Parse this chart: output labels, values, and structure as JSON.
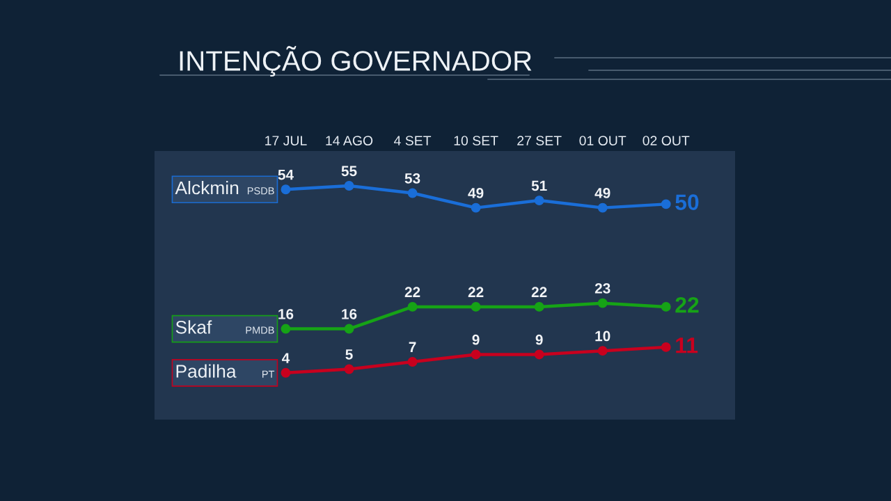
{
  "chart_data": {
    "type": "line",
    "title": "INTENÇÃO GOVERNADOR",
    "categories": [
      "17 JUL",
      "14 AGO",
      "4 SET",
      "10 SET",
      "27 SET",
      "01 OUT",
      "02 OUT"
    ],
    "series": [
      {
        "name": "Alckmin PSDB",
        "color": "#1a6ed8",
        "values": [
          54,
          55,
          53,
          49,
          51,
          49,
          50
        ]
      },
      {
        "name": "Skaf PMDB",
        "color": "#16a316",
        "values": [
          16,
          16,
          22,
          22,
          22,
          23,
          22
        ]
      },
      {
        "name": "Padilha PT",
        "color": "#c8001e",
        "values": [
          4,
          5,
          7,
          9,
          9,
          10,
          11
        ]
      }
    ],
    "marker": "circle",
    "line_style": "solid",
    "data_labels": true,
    "legend": "left",
    "tick_labels": "x"
  }
}
